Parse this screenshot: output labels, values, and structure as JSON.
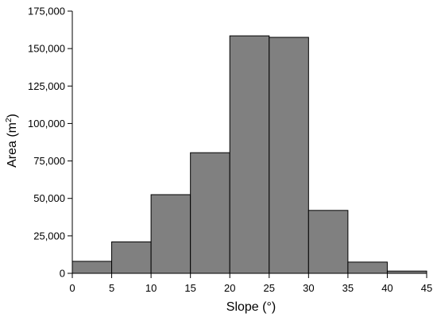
{
  "chart_data": {
    "type": "bar",
    "title": "",
    "xlabel": "Slope (°)",
    "ylabel": "Area (m²)",
    "ylabel_parts": {
      "base": "Area (m",
      "sup": "2",
      "end": ")"
    },
    "bin_edges": [
      0,
      5,
      10,
      15,
      20,
      25,
      30,
      35,
      40,
      45
    ],
    "values": [
      8000,
      21000,
      52500,
      80500,
      158500,
      157500,
      42000,
      7500,
      1500
    ],
    "xlim": [
      0,
      45
    ],
    "ylim": [
      0,
      175000
    ],
    "x_ticks": [
      0,
      5,
      10,
      15,
      20,
      25,
      30,
      35,
      40,
      45
    ],
    "y_ticks": [
      0,
      25000,
      50000,
      75000,
      100000,
      125000,
      150000,
      175000
    ],
    "x_tick_labels": [
      "0",
      "5",
      "10",
      "15",
      "20",
      "25",
      "30",
      "35",
      "40",
      "45"
    ],
    "y_tick_labels": [
      "0",
      "25,000",
      "50,000",
      "75,000",
      "100,000",
      "125,000",
      "150,000",
      "175,000"
    ],
    "bar_color": "#808080",
    "grid": false,
    "legend": false
  }
}
